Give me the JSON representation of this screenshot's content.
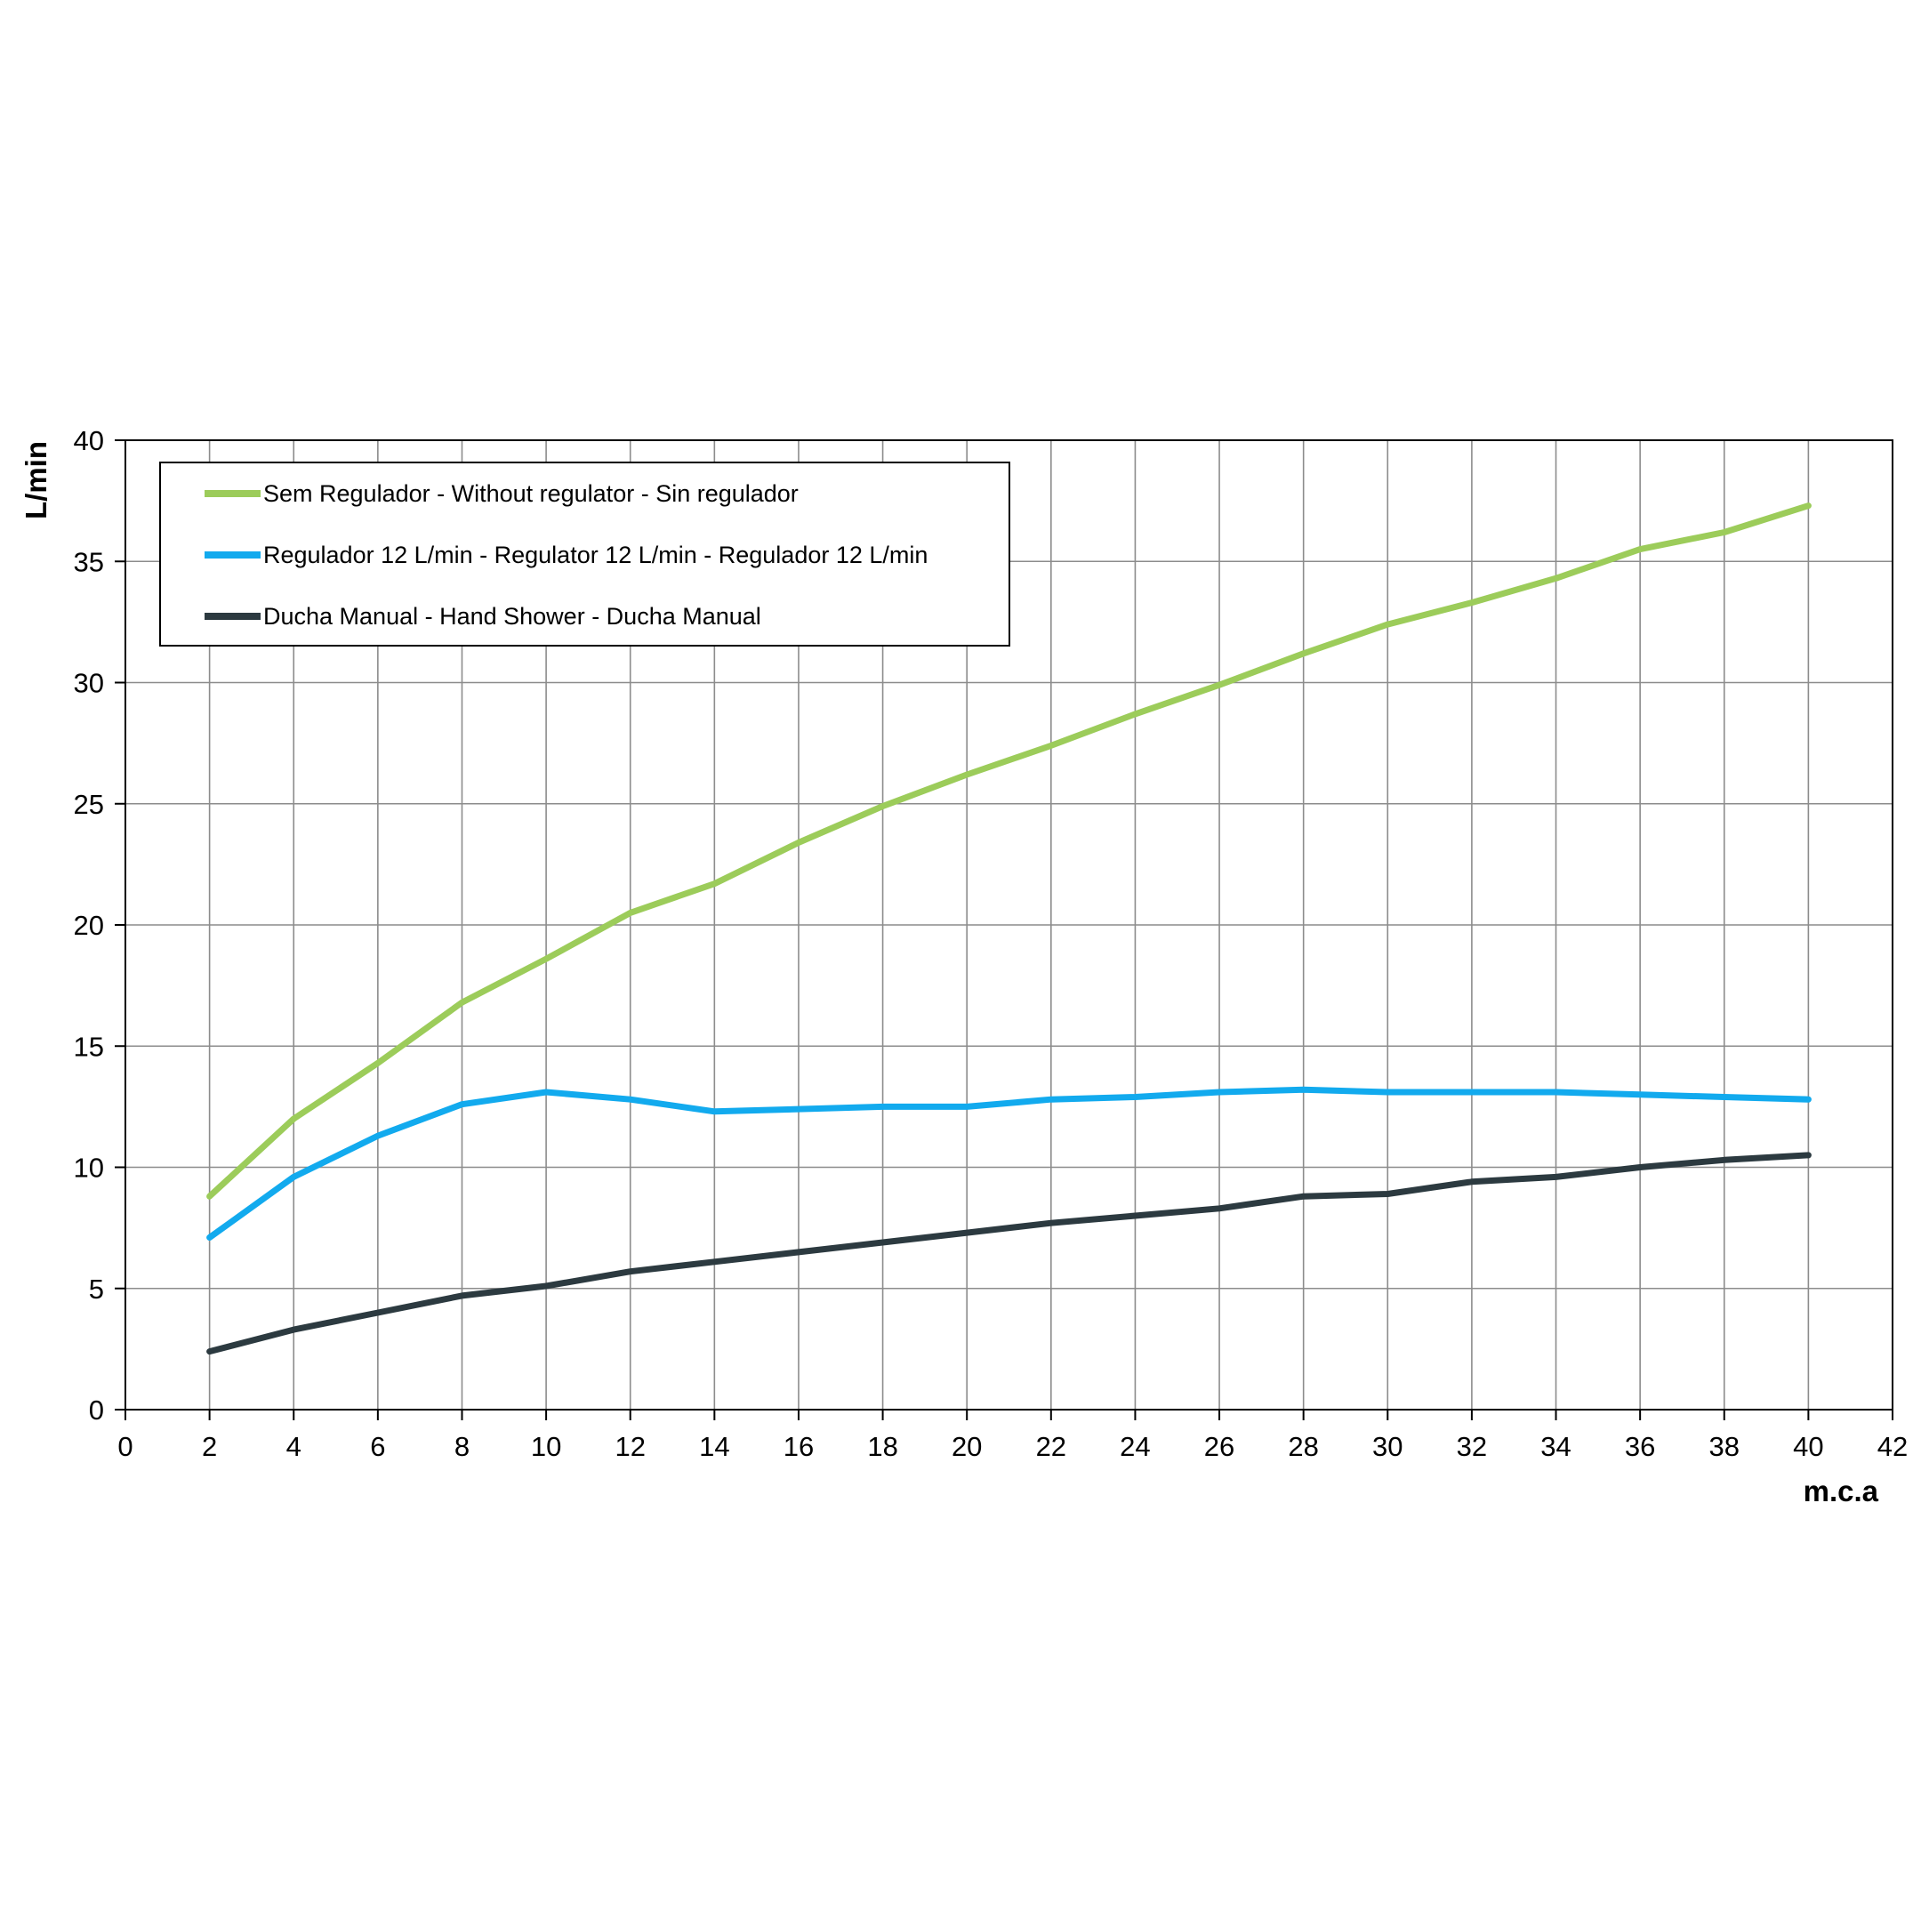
{
  "chart_data": {
    "type": "line",
    "title": "",
    "xlabel": "m.c.a",
    "ylabel": "L/min",
    "xlim": [
      0,
      42
    ],
    "ylim": [
      0,
      40
    ],
    "xticks": [
      0,
      2,
      4,
      6,
      8,
      10,
      12,
      14,
      16,
      18,
      20,
      22,
      24,
      26,
      28,
      30,
      32,
      34,
      36,
      38,
      40,
      42
    ],
    "yticks": [
      0,
      5,
      10,
      15,
      20,
      25,
      30,
      35,
      40
    ],
    "grid": true,
    "legend_position": "top-left",
    "series": [
      {
        "name": "Sem Regulador - Without regulator - Sin regulador",
        "color": "#9ccc5a",
        "x": [
          2,
          4,
          6,
          8,
          10,
          12,
          14,
          16,
          18,
          20,
          22,
          24,
          26,
          28,
          30,
          32,
          34,
          36,
          38,
          40
        ],
        "y": [
          8.8,
          12.0,
          14.3,
          16.8,
          18.6,
          20.5,
          21.7,
          23.4,
          24.9,
          26.2,
          27.4,
          28.7,
          29.9,
          31.2,
          32.4,
          33.3,
          34.3,
          35.5,
          36.2,
          37.3
        ]
      },
      {
        "name": "Regulador 12 L/min - Regulator 12 L/min - Regulador 12 L/min",
        "color": "#12aaee",
        "x": [
          2,
          4,
          6,
          8,
          10,
          12,
          14,
          16,
          18,
          20,
          22,
          24,
          26,
          28,
          30,
          32,
          34,
          36,
          38,
          40
        ],
        "y": [
          7.1,
          9.6,
          11.3,
          12.6,
          13.1,
          12.8,
          12.3,
          12.4,
          12.5,
          12.5,
          12.8,
          12.9,
          13.1,
          13.2,
          13.1,
          13.1,
          13.1,
          13.0,
          12.9,
          12.8
        ]
      },
      {
        "name": "Ducha Manual - Hand Shower - Ducha Manual",
        "color": "#2c3a40",
        "x": [
          2,
          4,
          6,
          8,
          10,
          12,
          14,
          16,
          18,
          20,
          22,
          24,
          26,
          28,
          30,
          32,
          34,
          36,
          38,
          40
        ],
        "y": [
          2.4,
          3.3,
          4.0,
          4.7,
          5.1,
          5.7,
          6.1,
          6.5,
          6.9,
          7.3,
          7.7,
          8.0,
          8.3,
          8.8,
          8.9,
          9.4,
          9.6,
          10.0,
          10.3,
          10.5
        ]
      }
    ]
  }
}
